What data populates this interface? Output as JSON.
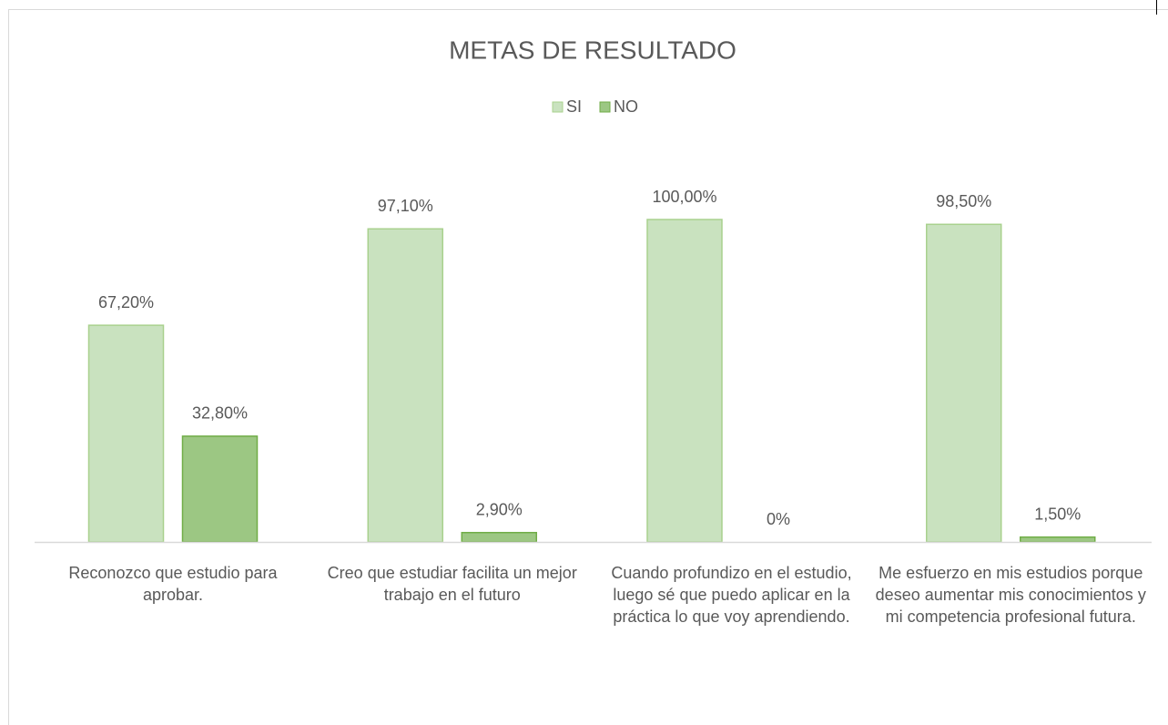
{
  "chart_data": {
    "type": "bar",
    "title": "METAS DE RESULTADO",
    "categories": [
      "Reconozco que estudio para aprobar.",
      "Creo que estudiar facilita un mejor trabajo en el futuro",
      "Cuando profundizo en el estudio, luego sé que puedo aplicar en la práctica lo que voy aprendiendo.",
      "Me esfuerzo en mis estudios porque deseo aumentar mis conocimientos y mi competencia profesional futura."
    ],
    "series": [
      {
        "name": "SI",
        "color": "#c9e2bf",
        "values": [
          67.2,
          97.1,
          100,
          98.5
        ],
        "value_labels": [
          "67,20%",
          "97,10%",
          "100,00%",
          "98,50%"
        ]
      },
      {
        "name": "NO",
        "color": "#9cc783",
        "values": [
          32.8,
          2.9,
          0,
          1.5
        ],
        "value_labels": [
          "32,80%",
          "2,90%",
          "0%",
          "1,50%"
        ]
      }
    ],
    "legend": "top"
  }
}
